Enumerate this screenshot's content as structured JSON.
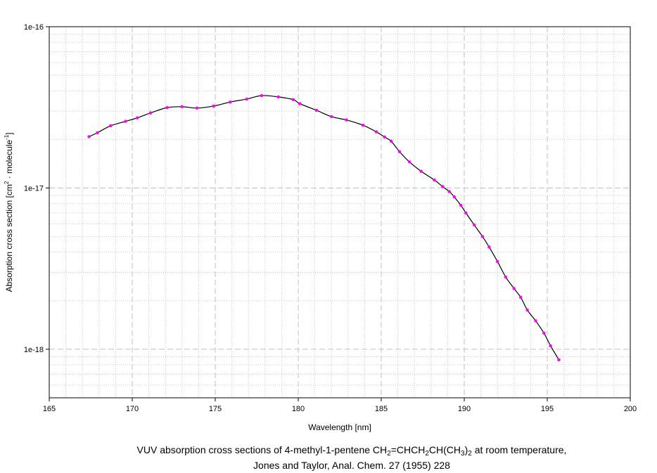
{
  "chart_data": {
    "type": "line",
    "x_label": "Wavelength [nm]",
    "y_label": {
      "prefix": "Absorption cross section [cm",
      "sup1": "2",
      "middle": " · molecule",
      "sup2": "-1",
      "suffix": "]"
    },
    "y_scale": "log",
    "xlim": [
      165,
      200
    ],
    "ylim": [
      5e-19,
      1e-16
    ],
    "x_ticks": [
      "165",
      "170",
      "175",
      "180",
      "185",
      "190",
      "195",
      "200"
    ],
    "x_tick_values": [
      165,
      170,
      175,
      180,
      185,
      190,
      195,
      200
    ],
    "y_ticks": [
      "1e-16",
      "1e-17",
      "1e-18"
    ],
    "y_tick_values": [
      1e-16,
      1e-17,
      1e-18
    ],
    "grid": true,
    "line_color": "#000000",
    "marker_color": "#ff00ff",
    "series": [
      {
        "x": [
          167.4,
          167.9,
          168.7,
          169.6,
          170.3,
          171.1,
          172.1,
          173.0,
          173.9,
          174.9,
          175.9,
          176.9,
          177.8,
          178.8,
          179.7,
          180.1,
          181.1,
          182.0,
          182.9,
          183.9,
          184.7,
          185.2,
          185.6,
          186.1,
          186.7,
          187.4,
          188.2,
          188.7,
          189.1,
          189.4,
          189.8,
          190.1,
          190.6,
          191.1,
          191.5,
          192.0,
          192.5,
          193.0,
          193.4,
          193.8,
          194.3,
          194.8,
          195.2,
          195.7
        ],
        "y": [
          2.08e-17,
          2.2e-17,
          2.43e-17,
          2.59e-17,
          2.72e-17,
          2.92e-17,
          3.15e-17,
          3.19e-17,
          3.13e-17,
          3.22e-17,
          3.41e-17,
          3.56e-17,
          3.74e-17,
          3.67e-17,
          3.53e-17,
          3.33e-17,
          3.03e-17,
          2.77e-17,
          2.64e-17,
          2.45e-17,
          2.23e-17,
          2.07e-17,
          1.95e-17,
          1.68e-17,
          1.45e-17,
          1.27e-17,
          1.12e-17,
          1.02e-17,
          9.5e-18,
          8.8e-18,
          7.8e-18,
          7e-18,
          5.9e-18,
          5e-18,
          4.3e-18,
          3.5e-18,
          2.8e-18,
          2.38e-18,
          2.1e-18,
          1.75e-18,
          1.5e-18,
          1.26e-18,
          1.05e-18,
          8.6e-19
        ]
      }
    ]
  },
  "caption": {
    "line1_prefix": "VUV absorption cross sections of 4-methyl-1-pentene CH",
    "sub_a": "2",
    "part_b": "=CHCH",
    "sub_b": "2",
    "part_c": "CH(CH",
    "sub_c": "3",
    "part_d": ")",
    "sub_d": "2",
    "line1_suffix": " at room temperature,",
    "line2": "Jones and Taylor, Anal. Chem. 27 (1955) 228"
  }
}
